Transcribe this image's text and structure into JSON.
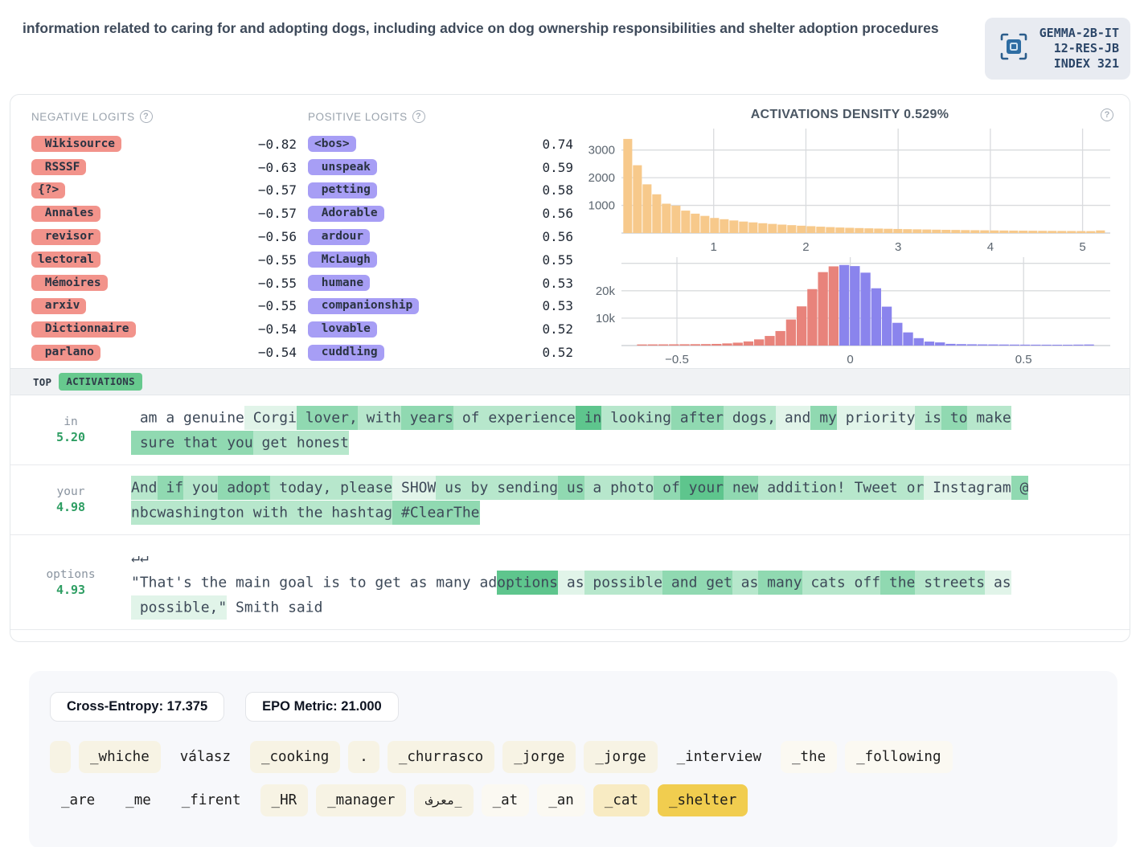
{
  "header": {
    "description": "information related to caring for and adopting dogs, including advice on dog ownership responsibilities and shelter adoption procedures",
    "model_badge": {
      "line1": "GEMMA-2B-IT",
      "line2": "12-RES-JB",
      "line3": "INDEX 321"
    }
  },
  "icons": {
    "help_glyph": "?"
  },
  "logits": {
    "negative_title": "NEGATIVE LOGITS",
    "positive_title": "POSITIVE LOGITS",
    "negative": [
      {
        "token": " Wikisource",
        "value": "−0.82"
      },
      {
        "token": " RSSSF",
        "value": "−0.63"
      },
      {
        "token": "{?>",
        "value": "−0.57"
      },
      {
        "token": " Annales",
        "value": "−0.57"
      },
      {
        "token": " revisor",
        "value": "−0.56"
      },
      {
        "token": "lectoral",
        "value": "−0.55"
      },
      {
        "token": " Mémoires",
        "value": "−0.55"
      },
      {
        "token": " arxiv",
        "value": "−0.55"
      },
      {
        "token": " Dictionnaire",
        "value": "−0.54"
      },
      {
        "token": " parlano",
        "value": "−0.54"
      }
    ],
    "positive": [
      {
        "token": "<bos>",
        "value": "0.74"
      },
      {
        "token": " unspeak",
        "value": "0.59"
      },
      {
        "token": " petting",
        "value": "0.58"
      },
      {
        "token": " Adorable",
        "value": "0.56"
      },
      {
        "token": " ardour",
        "value": "0.56"
      },
      {
        "token": " McLaugh",
        "value": "0.55"
      },
      {
        "token": " humane",
        "value": "0.53"
      },
      {
        "token": " companionship",
        "value": "0.53"
      },
      {
        "token": " lovable",
        "value": "0.52"
      },
      {
        "token": " cuddling",
        "value": "0.52"
      }
    ]
  },
  "density": {
    "title": "ACTIVATIONS DENSITY 0.529%"
  },
  "chart_data": [
    {
      "type": "bar",
      "title": "Positive activations histogram",
      "x_start": 0.02,
      "bin_width": 0.1046,
      "values": [
        3400,
        2450,
        1760,
        1400,
        1060,
        990,
        810,
        700,
        620,
        545,
        500,
        455,
        415,
        385,
        355,
        330,
        305,
        285,
        265,
        248,
        230,
        215,
        200,
        190,
        180,
        170,
        162,
        154,
        147,
        140,
        134,
        128,
        122,
        117,
        112,
        107,
        103,
        99,
        95,
        92,
        89,
        86,
        83,
        80,
        78,
        76,
        74,
        72,
        70,
        95
      ],
      "xlim": [
        0,
        5.3
      ],
      "ylim": [
        0,
        3600
      ],
      "xticks": [
        1,
        2,
        3,
        4,
        5
      ],
      "xtick_labels": [
        "1",
        "2",
        "3",
        "4",
        "5"
      ],
      "yticks": [
        1000,
        2000,
        3000
      ],
      "ytick_labels": [
        "1000",
        "2000",
        "3000"
      ],
      "grid_y": [
        1000,
        2000,
        3000
      ],
      "color": "#f7c98b"
    },
    {
      "type": "bar",
      "title": "Logit density histogram (negative red, positive purple)",
      "x_start": -0.615,
      "bin_width": 0.0307,
      "values": [
        400,
        420,
        430,
        450,
        470,
        500,
        530,
        600,
        780,
        1050,
        1500,
        2250,
        3500,
        5300,
        9500,
        14300,
        20600,
        26800,
        28900,
        29400,
        29000,
        26600,
        20900,
        14200,
        8300,
        4800,
        2700,
        1450,
        1150,
        620,
        520,
        460,
        420,
        400,
        370,
        350,
        330,
        320,
        310,
        300,
        300,
        340,
        380
      ],
      "split_index": 19,
      "colors": [
        "#e8837b",
        "#8a84ed"
      ],
      "xlim": [
        -0.66,
        0.75
      ],
      "ylim": [
        0,
        30500
      ],
      "xticks": [
        -0.5,
        0,
        0.5
      ],
      "xtick_labels": [
        "−0.5",
        "0",
        "0.5"
      ],
      "yticks": [
        10000,
        20000
      ],
      "ytick_labels": [
        "10k",
        "20k"
      ],
      "grid_y": [
        10000,
        20000,
        30000
      ]
    }
  ],
  "activations_header": {
    "top_label": "TOP",
    "badge": "ACTIVATIONS"
  },
  "activation_rows": [
    {
      "token": "in",
      "value": "5.20",
      "segments": [
        {
          "t": " am a genuine",
          "l": 0
        },
        {
          "t": " Corgi",
          "l": 1
        },
        {
          "t": " lover,",
          "l": 3
        },
        {
          "t": " with",
          "l": 2
        },
        {
          "t": " years",
          "l": 3
        },
        {
          "t": " of",
          "l": 2
        },
        {
          "t": " experience",
          "l": 2
        },
        {
          "t": " in",
          "l": 4
        },
        {
          "t": " looking",
          "l": 2
        },
        {
          "t": " after",
          "l": 3
        },
        {
          "t": " dogs,",
          "l": 2
        },
        {
          "t": " and",
          "l": 1
        },
        {
          "t": " my",
          "l": 3
        },
        {
          "t": " priority",
          "l": 1
        },
        {
          "t": " is",
          "l": 2
        },
        {
          "t": " to",
          "l": 3
        },
        {
          "t": " make",
          "l": 2
        },
        {
          "br": true
        },
        {
          "t": " sure that you",
          "l": 3
        },
        {
          "t": " get",
          "l": 2
        },
        {
          "t": " honest",
          "l": 2
        }
      ]
    },
    {
      "token": "your",
      "value": "4.98",
      "segments": [
        {
          "t": "And",
          "l": 2
        },
        {
          "t": " if",
          "l": 3
        },
        {
          "t": " you",
          "l": 2
        },
        {
          "t": " adopt",
          "l": 3
        },
        {
          "t": " today,",
          "l": 2
        },
        {
          "t": " please",
          "l": 2
        },
        {
          "t": " SHOW",
          "l": 1
        },
        {
          "t": " us",
          "l": 2
        },
        {
          "t": " by",
          "l": 2
        },
        {
          "t": " sending",
          "l": 2
        },
        {
          "t": " us",
          "l": 3
        },
        {
          "t": " a",
          "l": 2
        },
        {
          "t": " photo",
          "l": 2
        },
        {
          "t": " of",
          "l": 3
        },
        {
          "t": " your",
          "l": 4
        },
        {
          "t": " new",
          "l": 3
        },
        {
          "t": " addition!",
          "l": 2
        },
        {
          "t": " Tweet",
          "l": 2
        },
        {
          "t": " or",
          "l": 2
        },
        {
          "t": " Instagram",
          "l": 1
        },
        {
          "t": " @",
          "l": 3
        },
        {
          "br": true
        },
        {
          "t": "nbcwashington",
          "l": 2
        },
        {
          "t": " with",
          "l": 2
        },
        {
          "t": " the",
          "l": 2
        },
        {
          "t": " hashtag",
          "l": 2
        },
        {
          "t": " #ClearThe",
          "l": 3
        }
      ]
    },
    {
      "token": "options",
      "value": "4.93",
      "segments": [
        {
          "t": "↵↵",
          "l": 0
        },
        {
          "br": true
        },
        {
          "t": "\"That's the main goal is to get as many ad",
          "l": 0
        },
        {
          "t": "options",
          "l": 4
        },
        {
          "t": " as",
          "l": 1
        },
        {
          "t": " possible",
          "l": 2
        },
        {
          "t": " and",
          "l": 3
        },
        {
          "t": " get",
          "l": 3
        },
        {
          "t": " as",
          "l": 2
        },
        {
          "t": " many",
          "l": 3
        },
        {
          "t": " cats",
          "l": 2
        },
        {
          "t": " off",
          "l": 2
        },
        {
          "t": " the",
          "l": 3
        },
        {
          "t": " streets",
          "l": 2
        },
        {
          "t": " as",
          "l": 1
        },
        {
          "br": true
        },
        {
          "t": " possible,\"",
          "l": 1
        },
        {
          "t": " Smith said",
          "l": 0
        }
      ]
    }
  ],
  "metrics": [
    {
      "label": "Cross-Entropy: 17.375"
    },
    {
      "label": "EPO Metric: 21.000"
    }
  ],
  "token_chip_rows": [
    [
      {
        "text": "",
        "bg": "cream"
      },
      {
        "text": "_whiche",
        "bg": "cream"
      },
      {
        "text": "válasz",
        "bg": "none"
      },
      {
        "text": "_cooking",
        "bg": "cream"
      },
      {
        "text": ".",
        "bg": "cream"
      },
      {
        "text": "_churrasco",
        "bg": "cream"
      },
      {
        "text": "_jorge",
        "bg": "cream"
      },
      {
        "text": "_jorge",
        "bg": "cream"
      },
      {
        "text": "_interview",
        "bg": "none"
      },
      {
        "text": "_the",
        "bg": "faint"
      },
      {
        "text": "_following",
        "bg": "faint"
      }
    ],
    [
      {
        "text": "_are",
        "bg": "none"
      },
      {
        "text": "_me",
        "bg": "none"
      },
      {
        "text": "_firent",
        "bg": "none"
      },
      {
        "text": "_HR",
        "bg": "cream"
      },
      {
        "text": "_manager",
        "bg": "cream"
      },
      {
        "text": "_معرف",
        "bg": "cream",
        "rtl": true
      },
      {
        "text": "_at",
        "bg": "faint"
      },
      {
        "text": "_an",
        "bg": "faint"
      },
      {
        "text": "_cat",
        "bg": "amber"
      },
      {
        "text": "_shelter",
        "bg": "gold"
      }
    ]
  ],
  "colors": {
    "negative_pill": "#f2938b",
    "positive_pill": "#a79ef5",
    "activation_badge": "#67c98e",
    "value_green": "#2e9e63",
    "hl": [
      "transparent",
      "#e1f4e9",
      "#b7e7cc",
      "#90d9b1",
      "#5ec58d"
    ],
    "chip_bg": {
      "none": "transparent",
      "cream": "#f7f3e4",
      "faint": "#fbf9f2",
      "amber": "#f8ebc3",
      "gold": "#f1cd4f"
    }
  }
}
